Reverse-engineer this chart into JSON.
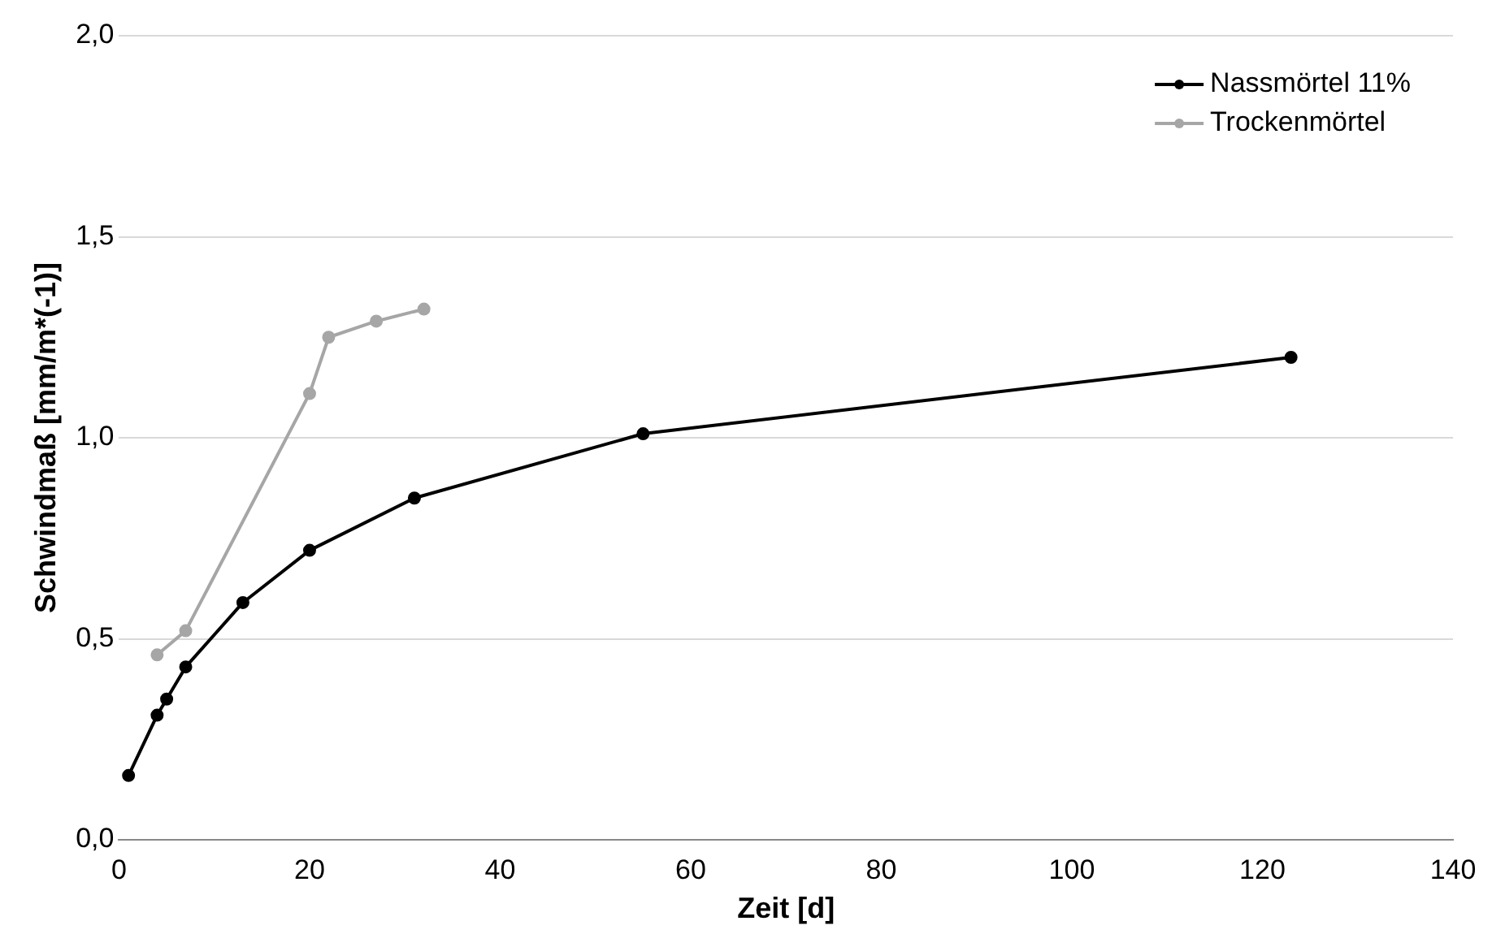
{
  "chart_data": {
    "type": "line",
    "xlabel": "Zeit [d]",
    "ylabel": "Schwindmaß [mm/m*(-1)]",
    "xlim": [
      0,
      140
    ],
    "xticks": [
      0,
      20,
      40,
      60,
      80,
      100,
      120,
      140
    ],
    "ylim": [
      0,
      2
    ],
    "yticks": [
      {
        "value": 0,
        "label": "0,0"
      },
      {
        "value": 0.5,
        "label": "0,5"
      },
      {
        "value": 1,
        "label": "1,0"
      },
      {
        "value": 1.5,
        "label": "1,5"
      },
      {
        "value": 2,
        "label": "2,0"
      }
    ],
    "grid": "y",
    "legend": "top right",
    "marker": "circle",
    "line_style": "solid",
    "series": [
      {
        "name": "Nassmörtel 11%",
        "color": "#000000",
        "x": [
          1,
          4,
          5,
          7,
          13,
          20,
          31,
          55,
          123
        ],
        "values": [
          0.16,
          0.31,
          0.35,
          0.43,
          0.59,
          0.72,
          0.85,
          1.01,
          1.2
        ]
      },
      {
        "name": "Trockenmörtel",
        "color": "#a6a6a6",
        "x": [
          4,
          7,
          20,
          22,
          27,
          32
        ],
        "values": [
          0.46,
          0.52,
          1.11,
          1.25,
          1.29,
          1.32
        ]
      }
    ]
  }
}
